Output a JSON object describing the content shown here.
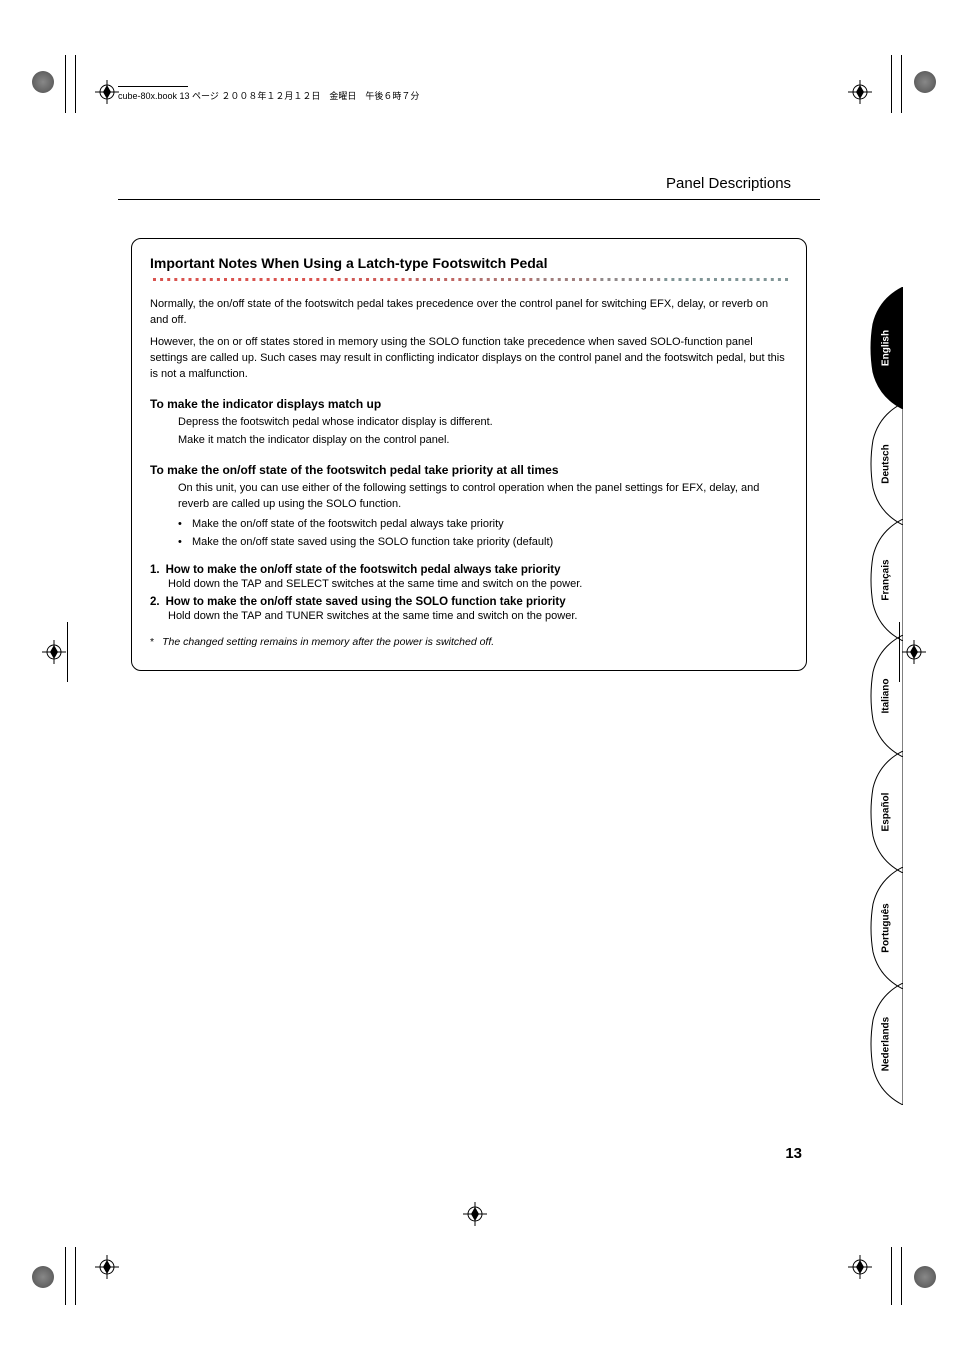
{
  "header": {
    "file_text": "cube-80x.book  13 ページ  ２００８年１２月１２日　金曜日　午後６時７分"
  },
  "page_title": "Panel Descriptions",
  "box": {
    "title": "Important Notes When Using a Latch-type Footswitch Pedal",
    "para1": "Normally, the on/off state of the footswitch pedal takes precedence over the control panel for switching EFX, delay, or reverb on and off.",
    "para2": "However, the on or off states stored in memory using the SOLO function take precedence when saved SOLO-function panel settings are called up. Such cases may result in conflicting indicator displays on the control panel and the footswitch pedal, but this is not a malfunction.",
    "sub1": "To make the indicator displays match up",
    "sub1_l1": "Depress the footswitch pedal whose indicator display is different.",
    "sub1_l2": "Make it match the indicator display on the control panel.",
    "sub2": "To make the on/off state of the footswitch pedal take priority at all times",
    "sub2_l1": "On this unit, you can use either of the following settings to control operation when the panel settings for EFX, delay, and reverb are called up using the SOLO function.",
    "bullet1": "Make the on/off state of the footswitch pedal always take priority",
    "bullet2": "Make the on/off state saved using the SOLO function take priority (default)",
    "num1_n": "1.",
    "num1_h": "How to make the on/off state of the footswitch pedal always take priority",
    "num1_b": "Hold down the TAP and SELECT switches at the same time and switch on the power.",
    "num2_n": "2.",
    "num2_h": "How to make the on/off state saved using the SOLO function take priority",
    "num2_b": "Hold down the TAP and TUNER switches at the same time and switch on the power.",
    "footnote_mark": "*",
    "footnote": "The changed setting remains in memory after the power is switched off."
  },
  "langs": {
    "l0": "English",
    "l1": "Deutsch",
    "l2": "Français",
    "l3": "Italiano",
    "l4": "Español",
    "l5": "Português",
    "l6": "Nederlands"
  },
  "page_number": "13",
  "style": {
    "dotted_colors": [
      "#d9534f",
      "#d9534f",
      "#d9534f",
      "#cf5a57",
      "#bf6663",
      "#af7270",
      "#9f7e7d",
      "#90898a",
      "#809596",
      "#809596",
      "#809596"
    ],
    "tab_active_fill": "#000000",
    "tab_stroke": "#000000"
  }
}
